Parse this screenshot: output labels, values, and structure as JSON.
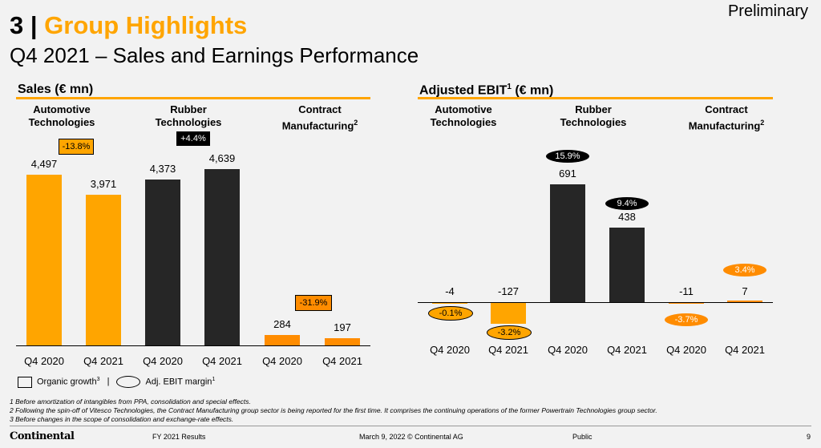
{
  "header": {
    "section_number": "3",
    "separator": " | ",
    "title": "Group Highlights",
    "subtitle": "Q4 2021 – Sales and Earnings Performance",
    "status": "Preliminary"
  },
  "colors": {
    "accent": "#ffa500",
    "dark": "#262626",
    "orange": "#ff8c00"
  },
  "sales": {
    "title": "Sales (€ mn)",
    "categories": [
      {
        "label_1": "Automotive",
        "label_2": "Technologies",
        "sup": ""
      },
      {
        "label_1": "Rubber",
        "label_2": "Technologies",
        "sup": ""
      },
      {
        "label_1": "Contract",
        "label_2": "Manufacturing",
        "sup": "2"
      }
    ],
    "badges": [
      "-13.8%",
      "+4.4%",
      "-31.9%"
    ]
  },
  "ebit": {
    "title": "Adjusted EBIT",
    "title_sup": "1",
    "title_unit": " (€ mn)",
    "categories": [
      {
        "label_1": "Automotive",
        "label_2": "Technologies",
        "sup": ""
      },
      {
        "label_1": "Rubber",
        "label_2": "Technologies",
        "sup": ""
      },
      {
        "label_1": "Contract",
        "label_2": "Manufacturing",
        "sup": "2"
      }
    ],
    "margins": [
      "-0.1%",
      "-3.2%",
      "15.9%",
      "9.4%",
      "-3.7%",
      "3.4%"
    ]
  },
  "chart_data": [
    {
      "type": "bar",
      "title": "Sales (€ mn)",
      "categories": [
        "Q4 2020",
        "Q4 2021",
        "Q4 2020",
        "Q4 2021",
        "Q4 2020",
        "Q4 2021"
      ],
      "groups": [
        "Automotive Technologies",
        "Rubber Technologies",
        "Contract Manufacturing"
      ],
      "values": [
        4497,
        3971,
        4373,
        4639,
        284,
        197
      ],
      "value_labels": [
        "4,497",
        "3,971",
        "4,373",
        "4,639",
        "284",
        "197"
      ],
      "organic_growth": [
        "-13.8%",
        "+4.4%",
        "-31.9%"
      ],
      "ylim": [
        0,
        5200
      ]
    },
    {
      "type": "bar",
      "title": "Adjusted EBIT (€ mn)",
      "categories": [
        "Q4 2020",
        "Q4 2021",
        "Q4 2020",
        "Q4 2021",
        "Q4 2020",
        "Q4 2021"
      ],
      "groups": [
        "Automotive Technologies",
        "Rubber Technologies",
        "Contract Manufacturing"
      ],
      "values": [
        -4,
        -127,
        691,
        438,
        -11,
        7
      ],
      "value_labels": [
        "-4",
        "-127",
        "691",
        "438",
        "-11",
        "7"
      ],
      "adj_ebit_margin": [
        "-0.1%",
        "-3.2%",
        "15.9%",
        "9.4%",
        "-3.7%",
        "3.4%"
      ],
      "ylim": [
        -150,
        800
      ]
    }
  ],
  "legend": {
    "organic_growth": "Organic growth",
    "organic_growth_sup": "3",
    "divider": "|",
    "margin": "Adj. EBIT margin",
    "margin_sup": "1"
  },
  "footnotes": [
    "1 Before amortization of intangibles from PPA, consolidation and special effects.",
    "2 Following the spin-off of Vitesco Technologies, the Contract Manufacturing group sector is being reported for the first time. It comprises the continuing operations of the former Powertrain Technologies group sector.",
    "3 Before changes in the scope of consolidation and exchange-rate effects."
  ],
  "footer": {
    "logo": "Continental",
    "doc": "FY 2021 Results",
    "date": "March 9, 2022 © Continental AG",
    "classification": "Public",
    "page": "9"
  }
}
